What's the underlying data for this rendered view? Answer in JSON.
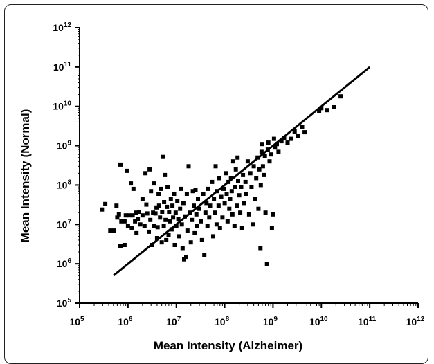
{
  "chart_data": {
    "type": "scatter",
    "title": "",
    "xlabel": "Mean Intensity (Alzheimer)",
    "ylabel": "Mean Intensity (Normal)",
    "x_scale": "log",
    "y_scale": "log",
    "xlim": [
      100000,
      1000000000000
    ],
    "ylim": [
      100000,
      1000000000000
    ],
    "x_tick_labels": [
      {
        "base": "10",
        "exp": "5"
      },
      {
        "base": "10",
        "exp": "6"
      },
      {
        "base": "10",
        "exp": "7"
      },
      {
        "base": "10",
        "exp": "8"
      },
      {
        "base": "10",
        "exp": "9"
      },
      {
        "base": "10",
        "exp": "10"
      },
      {
        "base": "10",
        "exp": "11"
      },
      {
        "base": "10",
        "exp": "12"
      }
    ],
    "y_tick_labels": [
      {
        "base": "10",
        "exp": "5"
      },
      {
        "base": "10",
        "exp": "6"
      },
      {
        "base": "10",
        "exp": "7"
      },
      {
        "base": "10",
        "exp": "8"
      },
      {
        "base": "10",
        "exp": "9"
      },
      {
        "base": "10",
        "exp": "10"
      },
      {
        "base": "10",
        "exp": "11"
      },
      {
        "base": "10",
        "exp": "12"
      }
    ],
    "grid": false,
    "marker": "square",
    "marker_color": "#000000",
    "line_color": "#000000",
    "series": [
      {
        "type": "scatter",
        "points": [
          [
            290000,
            24000000
          ],
          [
            340000,
            33000000
          ],
          [
            430000,
            7000000
          ],
          [
            520000,
            7000000
          ],
          [
            580000,
            30000000
          ],
          [
            600000,
            15000000
          ],
          [
            650000,
            18000000
          ],
          [
            700000,
            2800000
          ],
          [
            730000,
            12000000
          ],
          [
            700000,
            330000000
          ],
          [
            850000,
            3000000
          ],
          [
            850000,
            12000000
          ],
          [
            900000,
            17000000
          ],
          [
            950000,
            230000000
          ],
          [
            1000000,
            9000000
          ],
          [
            1050000,
            17000000
          ],
          [
            1150000,
            110000000
          ],
          [
            1200000,
            8000000
          ],
          [
            1250000,
            17000000
          ],
          [
            1300000,
            80000000
          ],
          [
            1400000,
            12000000
          ],
          [
            1450000,
            20000000
          ],
          [
            1500000,
            6000000
          ],
          [
            1600000,
            14000000
          ],
          [
            1700000,
            21000000
          ],
          [
            1800000,
            10000000
          ],
          [
            2000000,
            45000000
          ],
          [
            2000000,
            17000000
          ],
          [
            2200000,
            9000000
          ],
          [
            2300000,
            200000000
          ],
          [
            2400000,
            32000000
          ],
          [
            2500000,
            19000000
          ],
          [
            2700000,
            6500000
          ],
          [
            2800000,
            250000000
          ],
          [
            2900000,
            13000000
          ],
          [
            3000000,
            70000000
          ],
          [
            3100000,
            3000000
          ],
          [
            3300000,
            20000000
          ],
          [
            3400000,
            9000000
          ],
          [
            3500000,
            110000000
          ],
          [
            3700000,
            19000000
          ],
          [
            3900000,
            27000000
          ],
          [
            4000000,
            4500000
          ],
          [
            4100000,
            8500000
          ],
          [
            4300000,
            60000000
          ],
          [
            4400000,
            30000000
          ],
          [
            4600000,
            15000000
          ],
          [
            4800000,
            80000000
          ],
          [
            5000000,
            3500000
          ],
          [
            5100000,
            21000000
          ],
          [
            5300000,
            520000000
          ],
          [
            5500000,
            9000000
          ],
          [
            5600000,
            37000000
          ],
          [
            5800000,
            180000000
          ],
          [
            6000000,
            13000000
          ],
          [
            6200000,
            4000000
          ],
          [
            6400000,
            28000000
          ],
          [
            6600000,
            90000000
          ],
          [
            6900000,
            5500000
          ],
          [
            7100000,
            21000000
          ],
          [
            7400000,
            12000000
          ],
          [
            7700000,
            45000000
          ],
          [
            8000000,
            7500000
          ],
          [
            8300000,
            30000000
          ],
          [
            8600000,
            15000000
          ],
          [
            9000000,
            60000000
          ],
          [
            9300000,
            3000000
          ],
          [
            9700000,
            20000000
          ],
          [
            10000000,
            9000000
          ],
          [
            10500000,
            40000000
          ],
          [
            11000000,
            14000000
          ],
          [
            11500000,
            5000000
          ],
          [
            12000000,
            25000000
          ],
          [
            12500000,
            80000000
          ],
          [
            13000000,
            10000000
          ],
          [
            13500000,
            2500000
          ],
          [
            14000000,
            35000000
          ],
          [
            14500000,
            1300000
          ],
          [
            15000000,
            16000000
          ],
          [
            16000000,
            1500000
          ],
          [
            16500000,
            60000000
          ],
          [
            17000000,
            7000000
          ],
          [
            18000000,
            300000000
          ],
          [
            19000000,
            20000000
          ],
          [
            20000000,
            3500000
          ],
          [
            21000000,
            13000000
          ],
          [
            22000000,
            70000000
          ],
          [
            23000000,
            30000000
          ],
          [
            24000000,
            6000000
          ],
          [
            25000000,
            75000000
          ],
          [
            26000000,
            18000000
          ],
          [
            27000000,
            9000000
          ],
          [
            28000000,
            45000000
          ],
          [
            30000000,
            25000000
          ],
          [
            32000000,
            12000000
          ],
          [
            34000000,
            4000000
          ],
          [
            36000000,
            60000000
          ],
          [
            38000000,
            1700000
          ],
          [
            40000000,
            20000000
          ],
          [
            42000000,
            35000000
          ],
          [
            44000000,
            9000000
          ],
          [
            46000000,
            80000000
          ],
          [
            48000000,
            15000000
          ],
          [
            50000000,
            30000000
          ],
          [
            55000000,
            120000000
          ],
          [
            58000000,
            5000000
          ],
          [
            60000000,
            45000000
          ],
          [
            63000000,
            20000000
          ],
          [
            65000000,
            300000000
          ],
          [
            68000000,
            10000000
          ],
          [
            70000000,
            70000000
          ],
          [
            75000000,
            30000000
          ],
          [
            78000000,
            150000000
          ],
          [
            80000000,
            8000000
          ],
          [
            85000000,
            50000000
          ],
          [
            90000000,
            15000000
          ],
          [
            95000000,
            80000000
          ],
          [
            100000000,
            35000000
          ],
          [
            105000000,
            200000000
          ],
          [
            110000000,
            60000000
          ],
          [
            115000000,
            12000000
          ],
          [
            120000000,
            120000000
          ],
          [
            125000000,
            25000000
          ],
          [
            130000000,
            45000000
          ],
          [
            135000000,
            150000000
          ],
          [
            140000000,
            70000000
          ],
          [
            145000000,
            18000000
          ],
          [
            150000000,
            400000000
          ],
          [
            160000000,
            9000000
          ],
          [
            165000000,
            90000000
          ],
          [
            170000000,
            250000000
          ],
          [
            180000000,
            30000000
          ],
          [
            185000000,
            500000000
          ],
          [
            190000000,
            130000000
          ],
          [
            200000000,
            55000000
          ],
          [
            210000000,
            20000000
          ],
          [
            220000000,
            90000000
          ],
          [
            230000000,
            8000000
          ],
          [
            240000000,
            180000000
          ],
          [
            250000000,
            35000000
          ],
          [
            270000000,
            120000000
          ],
          [
            280000000,
            60000000
          ],
          [
            300000000,
            400000000
          ],
          [
            320000000,
            18000000
          ],
          [
            340000000,
            200000000
          ],
          [
            360000000,
            90000000
          ],
          [
            380000000,
            10000000
          ],
          [
            400000000,
            300000000
          ],
          [
            420000000,
            45000000
          ],
          [
            450000000,
            150000000
          ],
          [
            480000000,
            500000000
          ],
          [
            500000000,
            25000000
          ],
          [
            520000000,
            250000000
          ],
          [
            550000000,
            2500000
          ],
          [
            560000000,
            100000000
          ],
          [
            580000000,
            700000000
          ],
          [
            600000000,
            1100000000
          ],
          [
            620000000,
            300000000
          ],
          [
            650000000,
            180000000
          ],
          [
            680000000,
            550000000
          ],
          [
            700000000,
            20000000
          ],
          [
            750000000,
            1000000
          ],
          [
            780000000,
            800000000
          ],
          [
            800000000,
            1200000000
          ],
          [
            850000000,
            400000000
          ],
          [
            900000000,
            600000000
          ],
          [
            950000000,
            8000000
          ],
          [
            1000000000,
            18000000
          ],
          [
            1050000000,
            1500000000
          ],
          [
            1100000000,
            900000000
          ],
          [
            1200000000,
            1100000000
          ],
          [
            1300000000,
            700000000
          ],
          [
            1500000000,
            1300000000
          ],
          [
            1700000000,
            1600000000
          ],
          [
            2000000000,
            1200000000
          ],
          [
            2400000000,
            1500000000
          ],
          [
            2800000000,
            2300000000
          ],
          [
            3300000000,
            1800000000
          ],
          [
            4000000000,
            3000000000
          ],
          [
            4500000000,
            2200000000
          ],
          [
            9000000000,
            7500000000
          ],
          [
            10000000000,
            9000000000
          ],
          [
            13000000000,
            8000000000
          ],
          [
            18000000000,
            9500000000
          ],
          [
            25000000000,
            18000000000
          ]
        ]
      },
      {
        "type": "line",
        "points": [
          [
            500000,
            500000
          ],
          [
            100000000000,
            100000000000
          ]
        ]
      }
    ]
  }
}
